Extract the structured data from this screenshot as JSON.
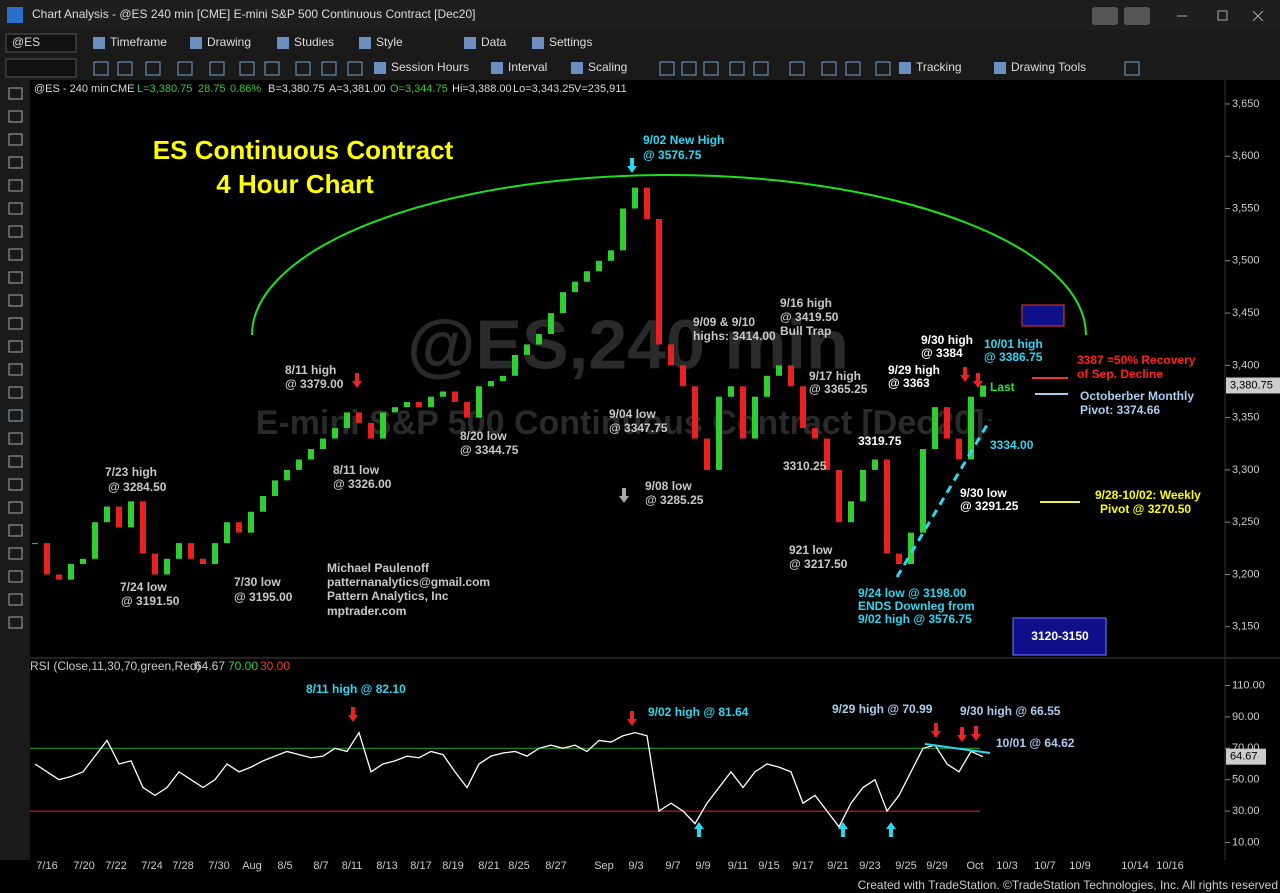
{
  "window": {
    "title": "Chart Analysis - @ES 240 min [CME] E-mini S&P 500 Continuous Contract [Dec20]",
    "footer": "Created with TradeStation. ©TradeStation Technologies, Inc. All rights reserved"
  },
  "toolbar": {
    "symbol": "@ES",
    "menus": [
      "Timeframe",
      "Drawing",
      "Studies",
      "Style",
      "Data",
      "Settings"
    ],
    "tools": [
      "Session Hours",
      "Interval",
      "Scaling",
      "Tracking",
      "Drawing Tools"
    ]
  },
  "price_chart": {
    "type": "candlestick",
    "info": [
      "@ES - 240 min",
      "CME",
      "L=3,380.75",
      "28.75",
      "0.86%",
      "B=3,380.75",
      "A=3,381.00",
      "O=3,344.75",
      "Hi=3,388.00",
      "Lo=3,343.25",
      "V=235,911"
    ],
    "watermark": [
      "@ES,240 min",
      "E-mini S&P 500 Continuous Contract [Dec20]"
    ],
    "close": [
      3230,
      3200,
      3195,
      3210,
      3215,
      3250,
      3265,
      3245,
      3270,
      3220,
      3200,
      3215,
      3230,
      3215,
      3210,
      3230,
      3250,
      3240,
      3260,
      3275,
      3290,
      3300,
      3310,
      3320,
      3330,
      3340,
      3355,
      3345,
      3330,
      3355,
      3360,
      3365,
      3360,
      3370,
      3375,
      3365,
      3350,
      3380,
      3385,
      3390,
      3410,
      3420,
      3430,
      3450,
      3470,
      3480,
      3490,
      3500,
      3510,
      3550,
      3570,
      3540,
      3420,
      3400,
      3380,
      3330,
      3300,
      3370,
      3380,
      3330,
      3370,
      3390,
      3400,
      3380,
      3340,
      3330,
      3300,
      3250,
      3270,
      3300,
      3310,
      3220,
      3210,
      3240,
      3320,
      3360,
      3330,
      3310,
      3370,
      3380.75
    ],
    "ylim": [
      3123,
      3671
    ],
    "yticks": [
      {
        "value": 3150,
        "label": "3,150"
      },
      {
        "value": 3200,
        "label": "3,200"
      },
      {
        "value": 3250,
        "label": "3,250"
      },
      {
        "value": 3300,
        "label": "3,300"
      },
      {
        "value": 3350,
        "label": "3,350"
      },
      {
        "value": 3400,
        "label": "3,400"
      },
      {
        "value": 3450,
        "label": "3,450"
      },
      {
        "value": 3500,
        "label": "3,500"
      },
      {
        "value": 3550,
        "label": "3,550"
      },
      {
        "value": 3600,
        "label": "3,600"
      },
      {
        "value": 3650,
        "label": "3,650"
      }
    ],
    "last_label": {
      "value": 3380.75,
      "label": "3,380.75"
    },
    "annotations": [
      "ES Continuous Contract",
      "4 Hour Chart",
      "9/02 New High",
      "@ 3576.75",
      "8/11 high",
      "@ 3379.00",
      "7/23 high",
      "@ 3284.50",
      "7/24 low",
      "@ 3191.50",
      "7/30 low",
      "@ 3195.00",
      "8/11 low",
      "@ 3326.00",
      "8/20 low",
      "@ 3344.75",
      "9/04 low",
      "@ 3347.75",
      "9/08 low",
      "@ 3285.25",
      "9/09 & 9/10",
      "highs: 3414.00",
      "9/16 high",
      "@ 3419.50",
      "Bull Trap",
      "9/17 high",
      "@ 3365.25",
      "3310.25",
      "921 low",
      "@ 3217.50",
      "3319.75",
      "9/29 high",
      "@ 3363",
      "9/30 high",
      "@ 3384",
      "10/01 high",
      "@ 3386.75",
      "Last",
      "3334.00",
      "9/30 low",
      "@ 3291.25",
      "9/24 low @ 3198.00",
      "ENDS Downleg from",
      "9/02 high @ 3576.75",
      "3387 =50% Recovery",
      "of Sep. Decline",
      "Octoberber Monthly",
      "Pivot: 3374.66",
      "9/28-10/02: Weekly",
      "Pivot @ 3270.50",
      "Michael Paulenoff",
      "patternanalytics@gmail.com",
      "Pattern Analytics, Inc",
      "mptrader.com",
      "3120-3150"
    ]
  },
  "rsi_chart": {
    "type": "line",
    "legend": "RSI (Close,11,30,70,green,Red)",
    "values": [
      60,
      55,
      50,
      52,
      55,
      65,
      75,
      60,
      62,
      45,
      40,
      45,
      55,
      50,
      45,
      50,
      60,
      55,
      58,
      62,
      65,
      68,
      66,
      64,
      65,
      70,
      68,
      80,
      55,
      60,
      62,
      65,
      64,
      68,
      66,
      55,
      45,
      60,
      65,
      67,
      68,
      65,
      70,
      72,
      70,
      72,
      68,
      75,
      74,
      78,
      80,
      78,
      30,
      35,
      30,
      22,
      35,
      45,
      55,
      45,
      55,
      60,
      58,
      55,
      35,
      40,
      30,
      20,
      35,
      45,
      50,
      30,
      40,
      55,
      70,
      72,
      60,
      55,
      68,
      64.67
    ],
    "ylim": [
      2,
      125
    ],
    "yticks": [
      {
        "value": 10,
        "label": "10.00"
      },
      {
        "value": 30,
        "label": "30.00"
      },
      {
        "value": 50,
        "label": "50.00"
      },
      {
        "value": 70,
        "label": "70.00"
      },
      {
        "value": 90,
        "label": "90.00"
      },
      {
        "value": 110,
        "label": "110.00"
      }
    ],
    "levels": [
      {
        "value": 70,
        "label": "70.00"
      },
      {
        "value": 30,
        "label": "30.00"
      }
    ],
    "last_label": {
      "value": 64.67,
      "label": "64.67"
    },
    "annotations": [
      "8/11 high @ 82.10",
      "9/02  high @ 81.64",
      "9/29 high @ 70.99",
      "9/30 high @ 66.55",
      "10/01 @ 64.62"
    ]
  },
  "x_axis": {
    "labels": [
      "7/16",
      "7/20",
      "7/22",
      "7/24",
      "7/28",
      "7/30",
      "Aug",
      "8/5",
      "8/7",
      "8/11",
      "8/13",
      "8/17",
      "8/19",
      "8/21",
      "8/25",
      "8/27",
      "Sep",
      "9/3",
      "9/7",
      "9/9",
      "9/11",
      "9/15",
      "9/17",
      "9/21",
      "9/23",
      "9/25",
      "9/29",
      "Oct",
      "10/3",
      "10/7",
      "10/9",
      "10/14",
      "10/16"
    ]
  }
}
